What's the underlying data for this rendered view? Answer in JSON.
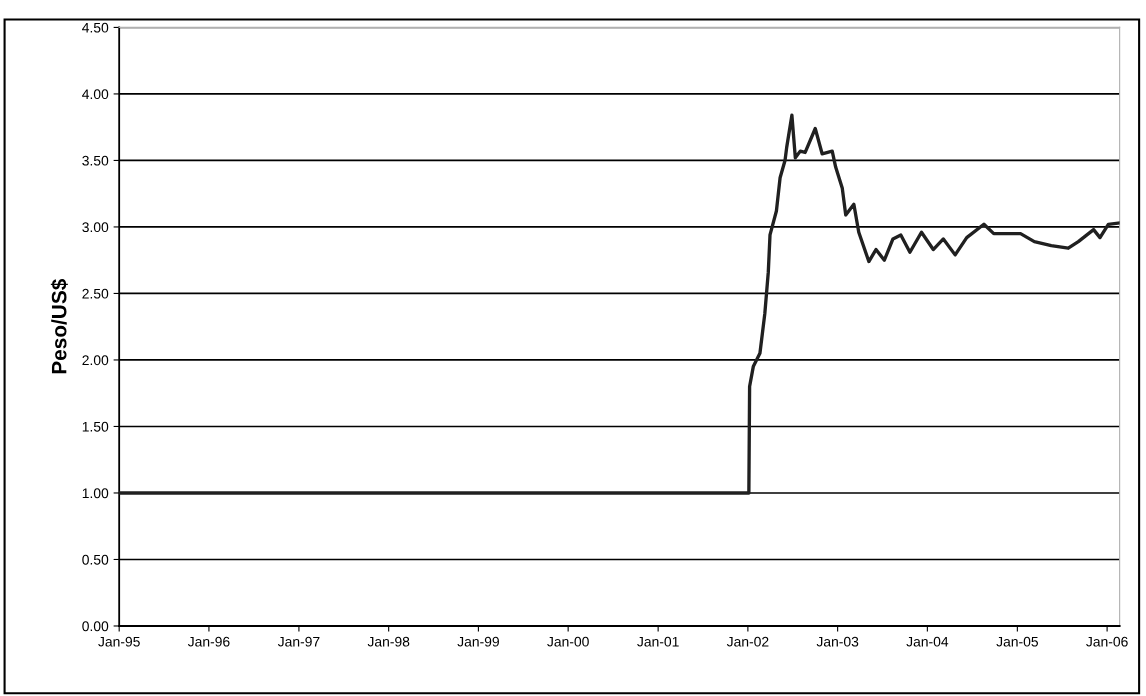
{
  "chart_data": {
    "type": "line",
    "ylabel": "Peso/US$",
    "series": [
      {
        "color": "#202020",
        "x": [
          "1995-01-01",
          "2001-12-31",
          "2002-01-05",
          "2002-01-08",
          "2002-01-23",
          "2002-02-19",
          "2002-03-11",
          "2002-03-25",
          "2002-04-01",
          "2002-04-27",
          "2002-05-12",
          "2002-06-01",
          "2002-06-08",
          "2002-06-29",
          "2002-07-13",
          "2002-08-02",
          "2002-08-22",
          "2002-10-02",
          "2002-10-30",
          "2002-12-10",
          "2002-12-24",
          "2003-01-20",
          "2003-02-03",
          "2003-03-08",
          "2003-03-28",
          "2003-05-08",
          "2003-06-06",
          "2003-07-10",
          "2003-08-14",
          "2003-09-15",
          "2003-10-22",
          "2003-12-08",
          "2004-01-25",
          "2004-03-06",
          "2004-04-23",
          "2004-06-09",
          "2004-08-18",
          "2004-09-27",
          "2005-01-14",
          "2005-03-11",
          "2005-05-19",
          "2005-07-27",
          "2005-09-06",
          "2005-11-07",
          "2005-12-03",
          "2006-01-06",
          "2006-02-21"
        ],
        "values": [
          1.0,
          1.0,
          1.0,
          1.8,
          1.95,
          2.05,
          2.35,
          2.66,
          2.94,
          3.12,
          3.37,
          3.5,
          3.6,
          3.84,
          3.52,
          3.57,
          3.56,
          3.74,
          3.55,
          3.57,
          3.45,
          3.29,
          3.09,
          3.17,
          2.96,
          2.74,
          2.83,
          2.75,
          2.91,
          2.94,
          2.81,
          2.96,
          2.83,
          2.91,
          2.79,
          2.92,
          3.02,
          2.95,
          2.95,
          2.89,
          2.86,
          2.84,
          2.89,
          2.98,
          2.92,
          3.02,
          3.03
        ]
      }
    ],
    "xlim": [
      "1995-01-01",
      "2006-02-21"
    ],
    "xticks": [
      {
        "value": "1995-01",
        "label": "Jan-95"
      },
      {
        "value": "1996-01",
        "label": "Jan-96"
      },
      {
        "value": "1997-01",
        "label": "Jan-97"
      },
      {
        "value": "1998-01",
        "label": "Jan-98"
      },
      {
        "value": "1999-01",
        "label": "Jan-99"
      },
      {
        "value": "2000-01",
        "label": "Jan-00"
      },
      {
        "value": "2001-01",
        "label": "Jan-01"
      },
      {
        "value": "2002-01",
        "label": "Jan-02"
      },
      {
        "value": "2003-01",
        "label": "Jan-03"
      },
      {
        "value": "2004-01",
        "label": "Jan-04"
      },
      {
        "value": "2005-01",
        "label": "Jan-05"
      },
      {
        "value": "2006-01",
        "label": "Jan-06"
      }
    ],
    "ylim": [
      0,
      4.5
    ],
    "yticks": [
      {
        "value": 0,
        "label": "0.00"
      },
      {
        "value": 0.5,
        "label": "0.50"
      },
      {
        "value": 1,
        "label": "1.00"
      },
      {
        "value": 1.5,
        "label": "1.50"
      },
      {
        "value": 2,
        "label": "2.00"
      },
      {
        "value": 2.5,
        "label": "2.50"
      },
      {
        "value": 3,
        "label": "3.00"
      },
      {
        "value": 3.5,
        "label": "3.50"
      },
      {
        "value": 4,
        "label": "4.00"
      },
      {
        "value": 4.5,
        "label": "4.50"
      }
    ],
    "grid": "y",
    "line_style": "solid",
    "marker": "none"
  }
}
